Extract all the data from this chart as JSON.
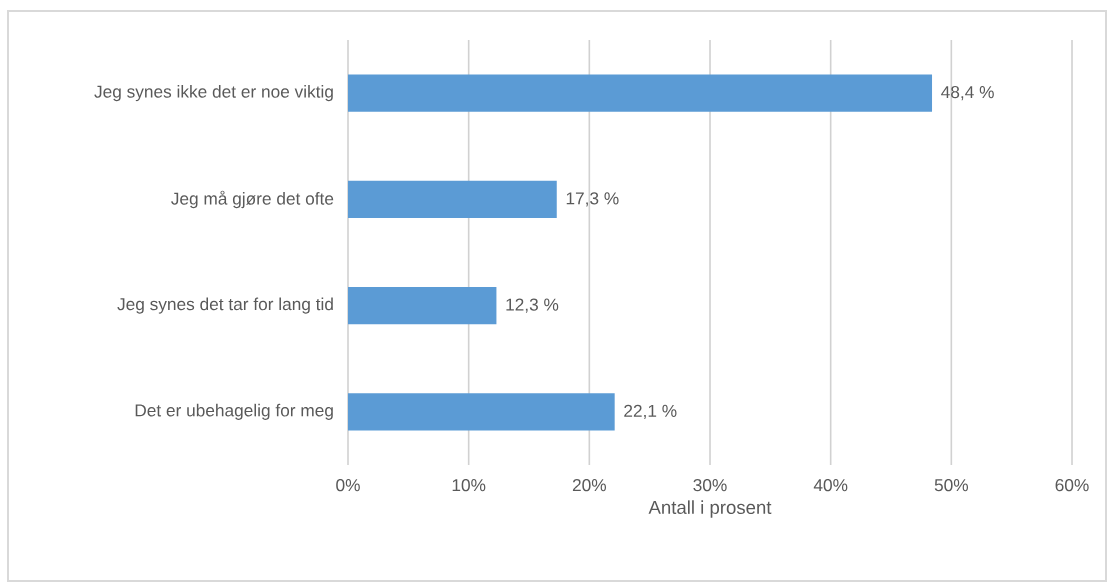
{
  "chart_data": {
    "type": "bar",
    "orientation": "horizontal",
    "categories": [
      "Jeg synes ikke det er noe viktig",
      "Jeg må gjøre det ofte",
      "Jeg synes det tar for lang tid",
      "Det er ubehagelig for meg"
    ],
    "values": [
      48.4,
      17.3,
      12.3,
      22.1
    ],
    "value_labels": [
      "48,4 %",
      "17,3 %",
      "12,3 %",
      "22,1 %"
    ],
    "color": "#5b9bd5",
    "xlabel": "Antall i prosent",
    "xlim": [
      0,
      60
    ],
    "xticks": [
      {
        "value": 0,
        "label": "0%"
      },
      {
        "value": 10,
        "label": "10%"
      },
      {
        "value": 20,
        "label": "20%"
      },
      {
        "value": 30,
        "label": "30%"
      },
      {
        "value": 40,
        "label": "40%"
      },
      {
        "value": 50,
        "label": "50%"
      },
      {
        "value": 60,
        "label": "60%"
      }
    ],
    "grid": "x"
  }
}
